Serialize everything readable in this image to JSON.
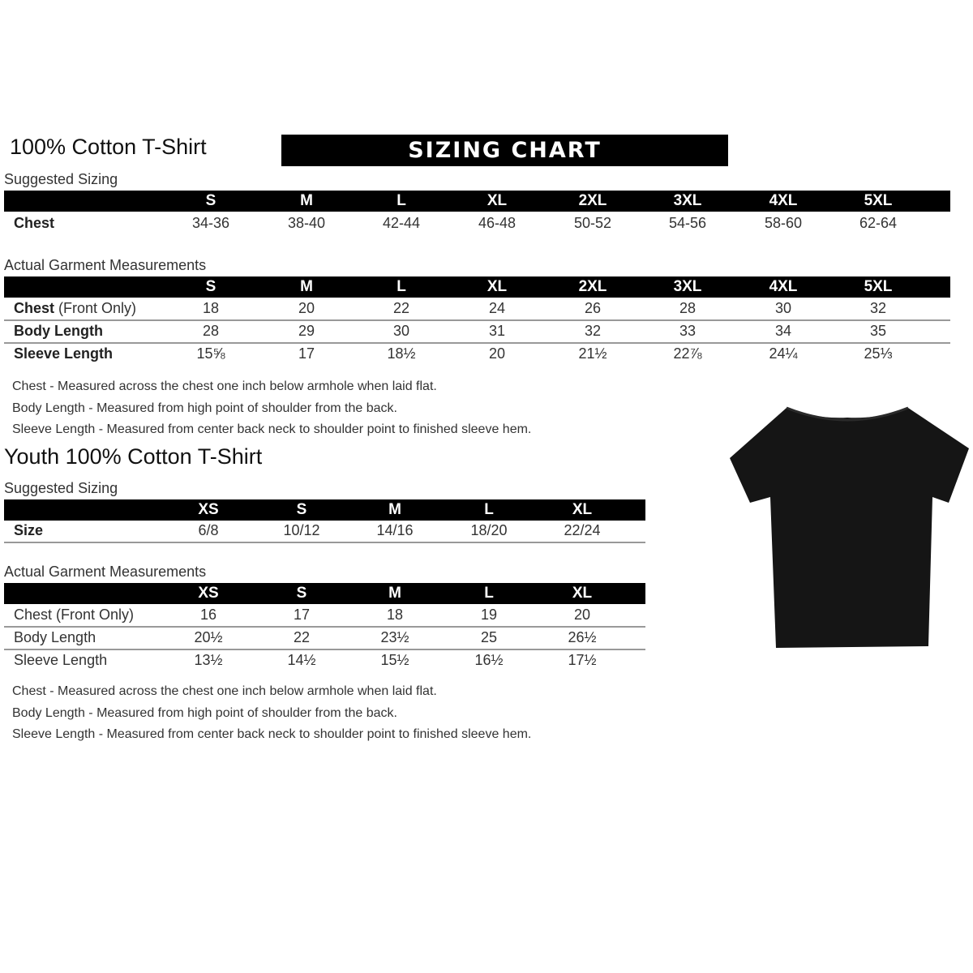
{
  "banner": "SIZING CHART",
  "adult": {
    "title": "100% Cotton T-Shirt",
    "suggested_label": "Suggested Sizing",
    "sizes": [
      "S",
      "M",
      "L",
      "XL",
      "2XL",
      "3XL",
      "4XL",
      "5XL"
    ],
    "suggested_rows": [
      {
        "bold": "Chest",
        "rest": "",
        "values": [
          "34-36",
          "38-40",
          "42-44",
          "46-48",
          "50-52",
          "54-56",
          "58-60",
          "62-64"
        ]
      }
    ],
    "actual_label": "Actual Garment Measurements",
    "actual_rows": [
      {
        "bold": "Chest",
        "rest": " (Front Only)",
        "values": [
          "18",
          "20",
          "22",
          "24",
          "26",
          "28",
          "30",
          "32"
        ]
      },
      {
        "bold": "Body Length",
        "rest": "",
        "values": [
          "28",
          "29",
          "30",
          "31",
          "32",
          "33",
          "34",
          "35"
        ]
      },
      {
        "bold": "Sleeve Length",
        "rest": "",
        "values": [
          "15⅝",
          "17",
          "18½",
          "20",
          "21½",
          "22⅞",
          "24¼",
          "25⅓"
        ]
      }
    ],
    "notes": [
      "Chest - Measured across the chest one inch below armhole when laid flat.",
      "Body Length - Measured from high point of shoulder from the back.",
      "Sleeve Length - Measured from center back neck to shoulder point to finished sleeve hem."
    ]
  },
  "youth": {
    "title": "Youth 100% Cotton T-Shirt",
    "suggested_label": "Suggested Sizing",
    "sizes": [
      "XS",
      "S",
      "M",
      "L",
      "XL"
    ],
    "suggested_rows": [
      {
        "bold": "Size",
        "rest": "",
        "values": [
          "6/8",
          "10/12",
          "14/16",
          "18/20",
          "22/24"
        ]
      }
    ],
    "actual_label": "Actual Garment Measurements",
    "actual_rows": [
      {
        "bold": "",
        "rest": "Chest (Front Only)",
        "values": [
          "16",
          "17",
          "18",
          "19",
          "20"
        ]
      },
      {
        "bold": "",
        "rest": "Body Length",
        "values": [
          "20½",
          "22",
          "23½",
          "25",
          "26½"
        ]
      },
      {
        "bold": "",
        "rest": "Sleeve Length",
        "values": [
          "13½",
          "14½",
          "15½",
          "16½",
          "17½"
        ]
      }
    ],
    "notes": [
      "Chest - Measured across the chest one inch below armhole when laid flat.",
      "Body Length - Measured from high point of shoulder from the back.",
      "Sleeve Length - Measured from center back neck to shoulder point to finished sleeve hem."
    ]
  },
  "tshirt_color": "#151515"
}
